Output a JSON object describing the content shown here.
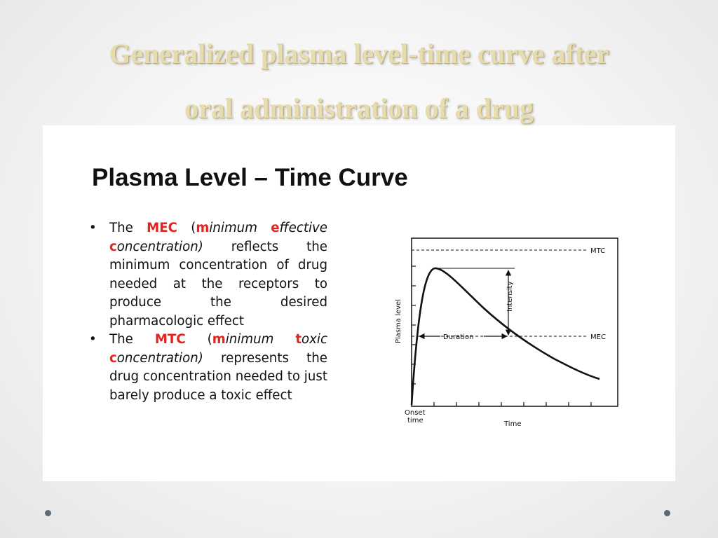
{
  "slide": {
    "title_line1": "Generalized plasma level-time curve after",
    "title_line2": "oral administration of a drug"
  },
  "panel": {
    "heading": "Plasma Level – Time Curve",
    "bullet1": {
      "p1": "The ",
      "mec": "MEC",
      "p2": " (",
      "m": "m",
      "inimum": "inimum ",
      "e": "e",
      "ffective": "ffective",
      "c": "c",
      "oncentration": "oncentration)",
      "rest": " reflects the minimum concentration of drug needed at the receptors to produce the desired pharmacologic effect"
    },
    "bullet2": {
      "p1": "The ",
      "mtc": "MTC",
      "p2": " (",
      "m": "m",
      "inimum": "inimum ",
      "t": "t",
      "oxic": "oxic",
      "c": "c",
      "oncentration": "oncentration)",
      "rest": " represents the drug concentration needed to just barely produce a toxic effect"
    }
  },
  "graph": {
    "y_label": "Plasma level",
    "x_label": "Time",
    "onset_line1": "Onset",
    "onset_line2": "time",
    "mtc_label": "MTC",
    "mec_label": "MEC",
    "duration_label": "Duration",
    "intensity_label": "Intensity"
  }
}
